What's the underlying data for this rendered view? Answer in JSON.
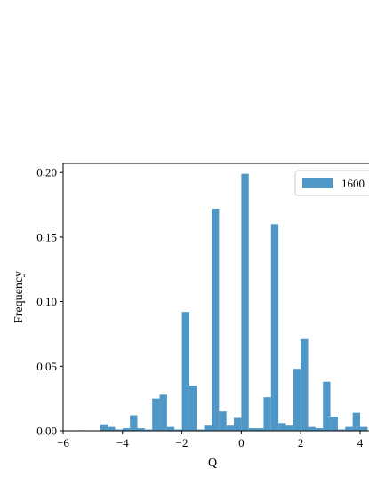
{
  "chart_data": {
    "type": "bar",
    "xlabel": "Q",
    "ylabel": "Frequency",
    "xlim": [
      -6,
      4.3
    ],
    "ylim": [
      0,
      0.207
    ],
    "xticks": [
      -6,
      -4,
      -2,
      0,
      2,
      4
    ],
    "xtick_labels": [
      "−6",
      "−4",
      "−2",
      "0",
      "2",
      "4"
    ],
    "yticks": [
      0,
      0.05,
      0.1,
      0.15,
      0.2
    ],
    "ytick_labels": [
      "0.00",
      "0.05",
      "0.10",
      "0.15",
      "0.20"
    ],
    "bin_width": 0.25,
    "color": "#4f97c7",
    "legend": {
      "position": "top-right",
      "label": "1600"
    },
    "series": [
      {
        "name": "1600",
        "bins": [
          {
            "x": -5.5,
            "y": 0.0004
          },
          {
            "x": -4.75,
            "y": 0.005
          },
          {
            "x": -4.5,
            "y": 0.003
          },
          {
            "x": -4.25,
            "y": 0.001
          },
          {
            "x": -4.0,
            "y": 0.002
          },
          {
            "x": -3.75,
            "y": 0.012
          },
          {
            "x": -3.5,
            "y": 0.002
          },
          {
            "x": -3.25,
            "y": 0.001
          },
          {
            "x": -3.0,
            "y": 0.025
          },
          {
            "x": -2.75,
            "y": 0.028
          },
          {
            "x": -2.5,
            "y": 0.003
          },
          {
            "x": -2.25,
            "y": 0.001
          },
          {
            "x": -2.0,
            "y": 0.092
          },
          {
            "x": -1.75,
            "y": 0.035
          },
          {
            "x": -1.5,
            "y": 0.001
          },
          {
            "x": -1.25,
            "y": 0.004
          },
          {
            "x": -1.0,
            "y": 0.172
          },
          {
            "x": -0.75,
            "y": 0.015
          },
          {
            "x": -0.5,
            "y": 0.004
          },
          {
            "x": -0.25,
            "y": 0.01
          },
          {
            "x": 0.0,
            "y": 0.199
          },
          {
            "x": 0.25,
            "y": 0.002
          },
          {
            "x": 0.5,
            "y": 0.002
          },
          {
            "x": 0.75,
            "y": 0.026
          },
          {
            "x": 1.0,
            "y": 0.16
          },
          {
            "x": 1.25,
            "y": 0.006
          },
          {
            "x": 1.5,
            "y": 0.004
          },
          {
            "x": 1.75,
            "y": 0.048
          },
          {
            "x": 2.0,
            "y": 0.071
          },
          {
            "x": 2.25,
            "y": 0.003
          },
          {
            "x": 2.5,
            "y": 0.002
          },
          {
            "x": 2.75,
            "y": 0.038
          },
          {
            "x": 3.0,
            "y": 0.011
          },
          {
            "x": 3.25,
            "y": 0.001
          },
          {
            "x": 3.5,
            "y": 0.003
          },
          {
            "x": 3.75,
            "y": 0.014
          },
          {
            "x": 4.0,
            "y": 0.003
          }
        ]
      }
    ]
  }
}
